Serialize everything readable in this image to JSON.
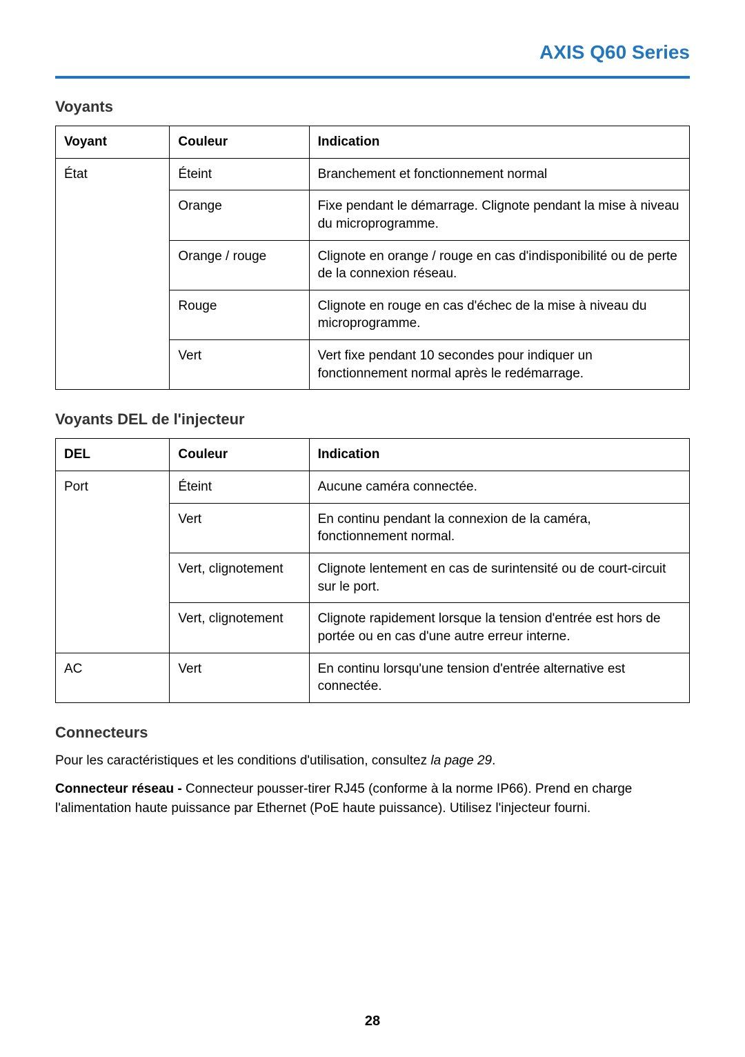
{
  "header": {
    "title": "AXIS Q60 Series"
  },
  "section1": {
    "title": "Voyants",
    "headers": {
      "c1": "Voyant",
      "c2": "Couleur",
      "c3": "Indication"
    },
    "rows": [
      {
        "c1": "État",
        "c2": "Éteint",
        "c3": "Branchement et fonctionnement normal"
      },
      {
        "c2": "Orange",
        "c3": "Fixe pendant le démarrage. Clignote pendant la mise à niveau du microprogramme."
      },
      {
        "c2": "Orange / rouge",
        "c3": "Clignote en orange / rouge en cas d'indisponibilité ou de perte de la connexion réseau."
      },
      {
        "c2": "Rouge",
        "c3": "Clignote en rouge en cas d'échec de la mise à niveau du microprogramme."
      },
      {
        "c2": "Vert",
        "c3": "Vert fixe pendant 10 secondes pour indiquer un fonctionnement normal après le redémarrage."
      }
    ]
  },
  "section2": {
    "title": "Voyants DEL de l'injecteur",
    "headers": {
      "c1": "DEL",
      "c2": "Couleur",
      "c3": "Indication"
    },
    "rows": [
      {
        "c1": "Port",
        "c2": "Éteint",
        "c3": "Aucune caméra connectée."
      },
      {
        "c2": "Vert",
        "c3": "En continu pendant la connexion de la caméra, fonctionnement normal."
      },
      {
        "c2": "Vert, clignotement",
        "c3": "Clignote lentement en cas de surintensité ou de court-circuit sur le port."
      },
      {
        "c2": "Vert, clignotement",
        "c3": "Clignote rapidement lorsque la tension d'entrée est hors de portée ou en cas d'une autre erreur interne."
      },
      {
        "c1": "AC",
        "c2": "Vert",
        "c3": "En continu lorsqu'une tension d'entrée alternative est connectée."
      }
    ]
  },
  "section3": {
    "title": "Connecteurs",
    "para1_a": "Pour les caractéristiques et les conditions d'utilisation, consultez ",
    "para1_b": "la page 29",
    "para1_c": ".",
    "para2_bold": "Connecteur réseau - ",
    "para2_rest": "Connecteur pousser-tirer RJ45 (conforme à la norme IP66). Prend en charge l'alimentation haute puissance par Ethernet (PoE haute puissance). Utilisez l'injecteur fourni."
  },
  "page_number": "28"
}
